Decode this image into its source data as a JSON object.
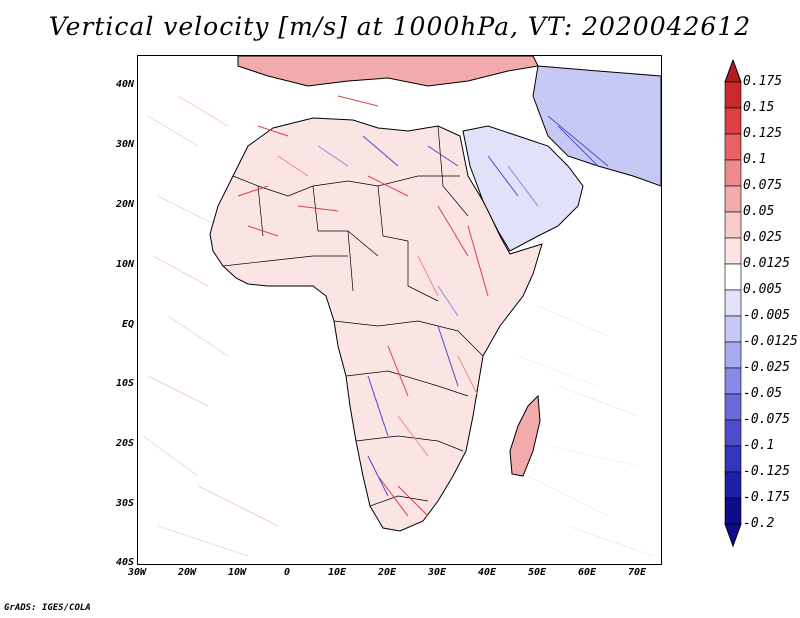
{
  "title": "Vertical velocity [m/s] at 1000hPa, VT: 2020042612",
  "credit": "GrADS: IGES/COLA",
  "map": {
    "lat_labels": [
      "40N",
      "30N",
      "20N",
      "10N",
      "EQ",
      "10S",
      "20S",
      "30S",
      "40S"
    ],
    "lon_labels": [
      "30W",
      "20W",
      "10W",
      "0",
      "10E",
      "20E",
      "30E",
      "40E",
      "50E",
      "60E",
      "70E"
    ],
    "lon_range": [
      -30,
      75
    ],
    "lat_range": [
      -40,
      45
    ]
  },
  "colorbar": {
    "levels": [
      "0.175",
      "0.15",
      "0.125",
      "0.1",
      "0.075",
      "0.05",
      "0.025",
      "0.0125",
      "0.005",
      "-0.005",
      "-0.0125",
      "-0.025",
      "-0.05",
      "-0.075",
      "-0.1",
      "-0.125",
      "-0.175",
      "-0.2"
    ],
    "colors": [
      "#b01e22",
      "#c9292d",
      "#dc4045",
      "#e66266",
      "#ed8a8c",
      "#f2abac",
      "#f7cbcb",
      "#fbe4e4",
      "#ffffff",
      "#e1e1fa",
      "#c8c8f5",
      "#aaaaef",
      "#8888e6",
      "#6a6ad9",
      "#4e4ecd",
      "#3434bd",
      "#1e1ea8",
      "#0d0d8c"
    ]
  }
}
